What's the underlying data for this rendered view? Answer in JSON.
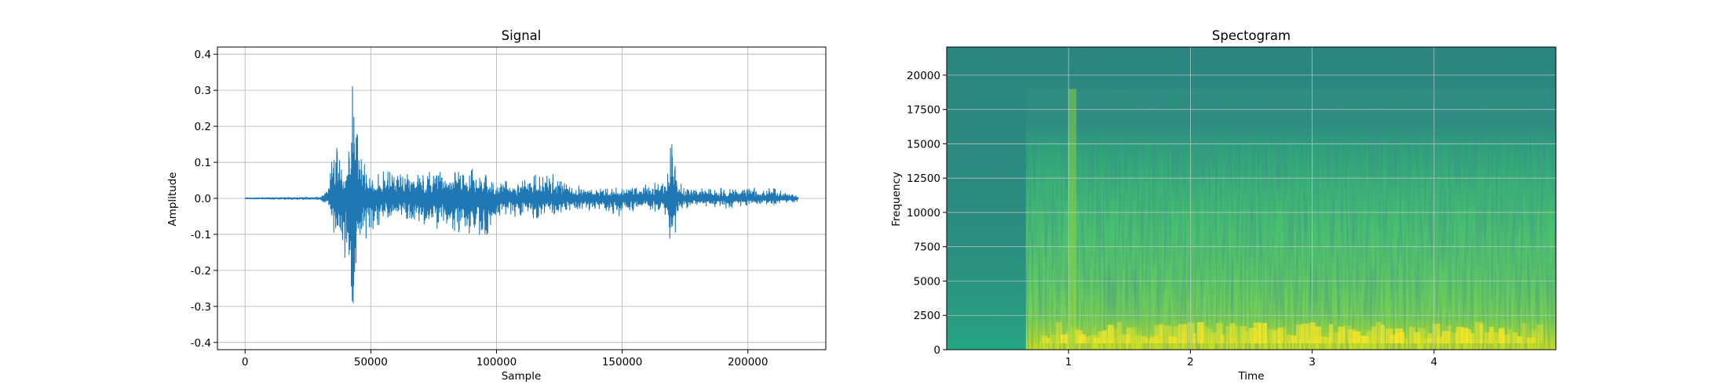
{
  "chart_data": [
    {
      "type": "line",
      "title": "Signal",
      "xlabel": "Sample",
      "ylabel": "Amplitude",
      "xlim": [
        -11000,
        231000
      ],
      "ylim": [
        -0.42,
        0.42
      ],
      "xticks": [
        0,
        50000,
        100000,
        150000,
        200000
      ],
      "yticks": [
        -0.4,
        -0.3,
        -0.2,
        -0.1,
        0.0,
        0.1,
        0.2,
        0.3,
        0.4
      ],
      "grid": true,
      "color": "#1f77b4",
      "series": [
        {
          "x": [
            0,
            30000,
            33000,
            36000,
            38000,
            41000,
            43000,
            45000,
            48000,
            52000,
            60000,
            70000,
            80000,
            90000,
            95000,
            100000,
            110000,
            120000,
            130000,
            140000,
            150000,
            160000,
            168000,
            170000,
            172000,
            180000,
            190000,
            200000,
            210000,
            220000
          ],
          "y_max": [
            0.002,
            0.004,
            0.03,
            0.19,
            0.12,
            0.15,
            0.38,
            0.16,
            0.09,
            0.08,
            0.08,
            0.07,
            0.08,
            0.09,
            0.07,
            0.05,
            0.05,
            0.08,
            0.04,
            0.03,
            0.03,
            0.04,
            0.06,
            0.2,
            0.05,
            0.03,
            0.03,
            0.03,
            0.03,
            0.01
          ],
          "y_min": [
            -0.002,
            -0.004,
            -0.03,
            -0.12,
            -0.13,
            -0.2,
            -0.37,
            -0.15,
            -0.12,
            -0.08,
            -0.07,
            -0.08,
            -0.09,
            -0.1,
            -0.12,
            -0.06,
            -0.05,
            -0.06,
            -0.03,
            -0.04,
            -0.05,
            -0.03,
            -0.05,
            -0.18,
            -0.05,
            -0.02,
            -0.03,
            -0.02,
            -0.02,
            -0.01
          ]
        }
      ]
    },
    {
      "type": "heatmap",
      "title": "Spectogram",
      "xlabel": "Time",
      "ylabel": "Frequency",
      "xlim": [
        0,
        5
      ],
      "ylim": [
        0,
        22050
      ],
      "xticks": [
        1,
        2,
        3,
        4
      ],
      "yticks": [
        0,
        2500,
        5000,
        7500,
        10000,
        12500,
        15000,
        17500,
        20000
      ],
      "grid": true,
      "colormap": "viridis",
      "onset_time": 0.65,
      "cutoff_frequency": 19000
    }
  ]
}
